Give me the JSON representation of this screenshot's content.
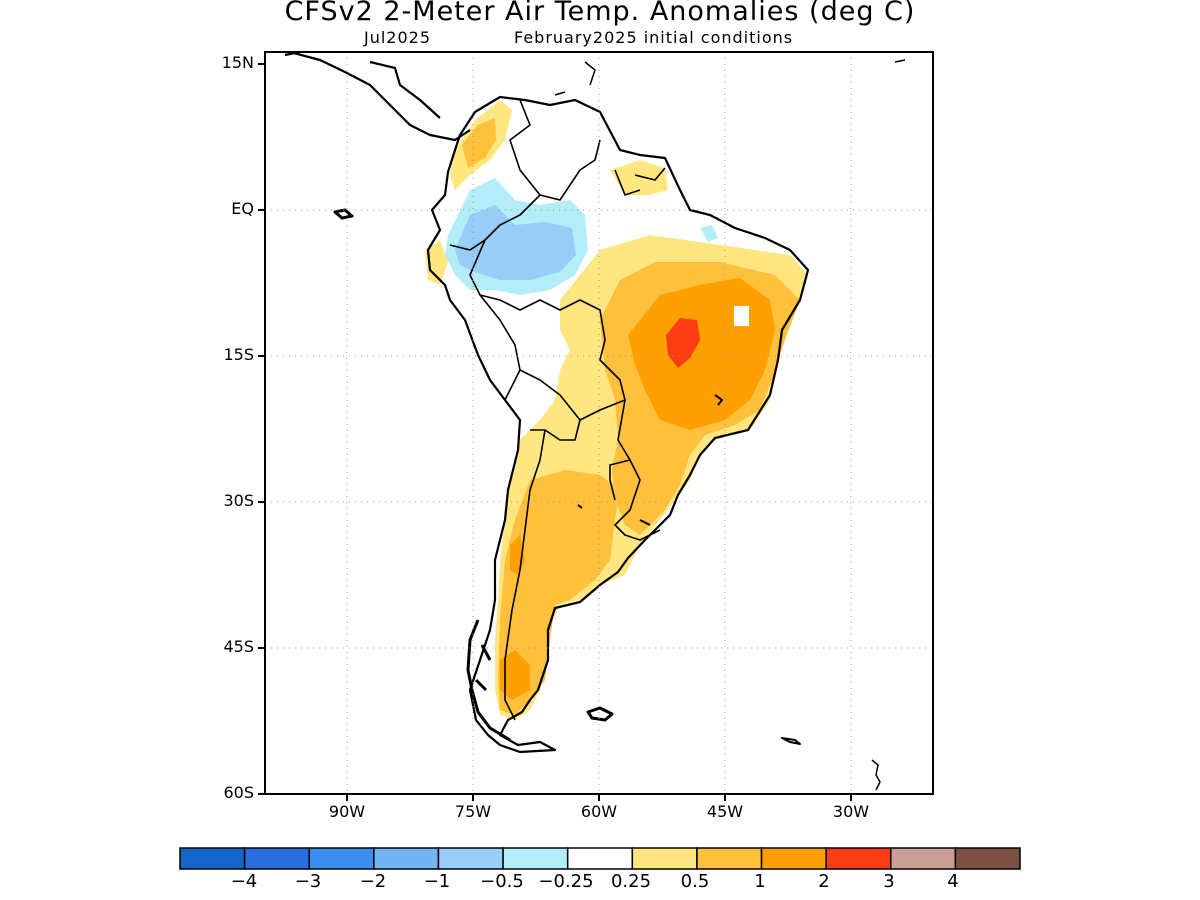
{
  "title": "CFSv2 2-Meter Air Temp. Anomalies (deg C)",
  "subtitle_left": "Jul2025",
  "subtitle_right": "February2025 initial conditions",
  "map": {
    "lat_ticks": [
      "15N",
      "EQ",
      "15S",
      "30S",
      "45S",
      "60S"
    ],
    "lon_ticks": [
      "90W",
      "75W",
      "60W",
      "45W",
      "30W"
    ],
    "grid": "dotted",
    "region": "South America"
  },
  "colorbar": {
    "colors": [
      "#1565c8",
      "#2a6de0",
      "#3a8ef0",
      "#74b4f4",
      "#97cdf6",
      "#b3eef8",
      "#ffffff",
      "#ffe680",
      "#ffc03c",
      "#ffa000",
      "#ff3c14",
      "#c8a096",
      "#7c5044"
    ],
    "labels": [
      "−4",
      "−3",
      "−2",
      "−1",
      "−0.5",
      "−0.25",
      "0.25",
      "0.5",
      "1",
      "2",
      "3",
      "4"
    ]
  }
}
